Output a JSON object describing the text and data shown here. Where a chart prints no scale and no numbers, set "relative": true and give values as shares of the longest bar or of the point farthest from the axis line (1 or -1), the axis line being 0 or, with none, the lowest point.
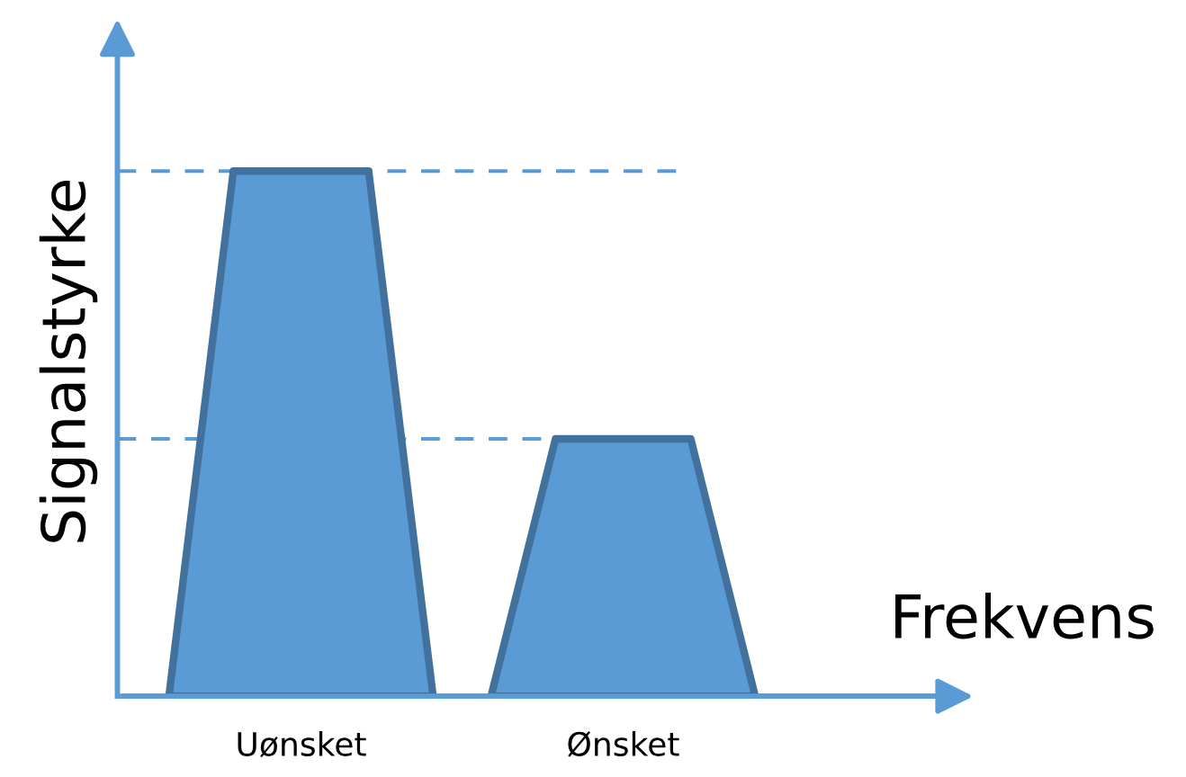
{
  "chart_data": {
    "type": "bar",
    "relative": true,
    "xlabel": "Frekvens",
    "ylabel": "Signalstyrke",
    "categories": [
      "Uønsket",
      "Ønsket"
    ],
    "values": [
      1,
      0.49
    ],
    "color": "#5b9bd5",
    "ref_lines": [
      {
        "axis": "y",
        "value": 1,
        "color": "#5b9bd5",
        "line_style": "dashed"
      },
      {
        "axis": "y",
        "value": 0.49,
        "color": "#5b9bd5",
        "line_style": "dashed"
      }
    ],
    "grid": false
  }
}
